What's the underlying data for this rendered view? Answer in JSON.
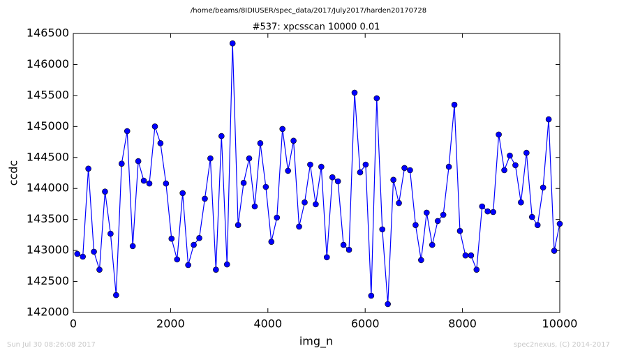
{
  "chart_data": {
    "type": "line",
    "suptitle": "/home/beams/8IDIUSER/spec_data/2017/July2017/harden20170728",
    "title": "#537: xpcsscan 10000 0.01",
    "xlabel": "img_n",
    "ylabel": "ccdc",
    "footer_left": "Sun Jul 30 08:26:08 2017",
    "footer_right": "spec2nexus, (C) 2014-2017",
    "x": [
      82,
      196,
      310,
      424,
      538,
      652,
      766,
      880,
      994,
      1108,
      1222,
      1336,
      1450,
      1564,
      1678,
      1792,
      1906,
      2020,
      2134,
      2248,
      2362,
      2476,
      2590,
      2704,
      2818,
      2932,
      3046,
      3160,
      3274,
      3388,
      3502,
      3616,
      3730,
      3844,
      3958,
      4072,
      4186,
      4300,
      4414,
      4528,
      4642,
      4756,
      4870,
      4984,
      5098,
      5212,
      5326,
      5440,
      5554,
      5668,
      5782,
      5896,
      6010,
      6124,
      6238,
      6352,
      6466,
      6580,
      6694,
      6808,
      6922,
      7036,
      7150,
      7264,
      7378,
      7492,
      7606,
      7720,
      7834,
      7948,
      8062,
      8176,
      8290,
      8404,
      8518,
      8632,
      8746,
      8860,
      8974,
      9088,
      9202,
      9316,
      9430,
      9544,
      9658,
      9772,
      9886,
      10000
    ],
    "series": [
      {
        "color": "#0000ff",
        "marker_edge": "#000000",
        "values": [
          142945,
          142900,
          144320,
          142980,
          142690,
          143950,
          143270,
          142280,
          144400,
          144925,
          143070,
          144440,
          144125,
          144080,
          145000,
          144730,
          144080,
          143190,
          142855,
          143925,
          142765,
          143090,
          143200,
          143835,
          144485,
          142690,
          144845,
          142775,
          146340,
          143410,
          144090,
          144485,
          143710,
          144730,
          144025,
          143140,
          143530,
          144960,
          144285,
          144770,
          143385,
          143775,
          144385,
          143745,
          144350,
          142890,
          144180,
          144115,
          143090,
          143010,
          145545,
          144260,
          144385,
          142270,
          145455,
          143340,
          142135,
          144140,
          143765,
          144330,
          144295,
          143410,
          142845,
          143610,
          143090,
          143475,
          143575,
          144350,
          145350,
          143315,
          142920,
          142920,
          142690,
          143710,
          143630,
          143620,
          144870,
          144295,
          144530,
          144375,
          143775,
          144575,
          143540,
          143410,
          144015,
          145115,
          142995,
          143430
        ]
      }
    ],
    "xlim": [
      0,
      10000
    ],
    "xticks": [
      0,
      2000,
      4000,
      6000,
      8000,
      10000
    ],
    "ylim": [
      142000,
      146500
    ],
    "yticks": [
      142000,
      142500,
      143000,
      143500,
      144000,
      144500,
      145000,
      145500,
      146000,
      146500
    ],
    "grid": false
  }
}
